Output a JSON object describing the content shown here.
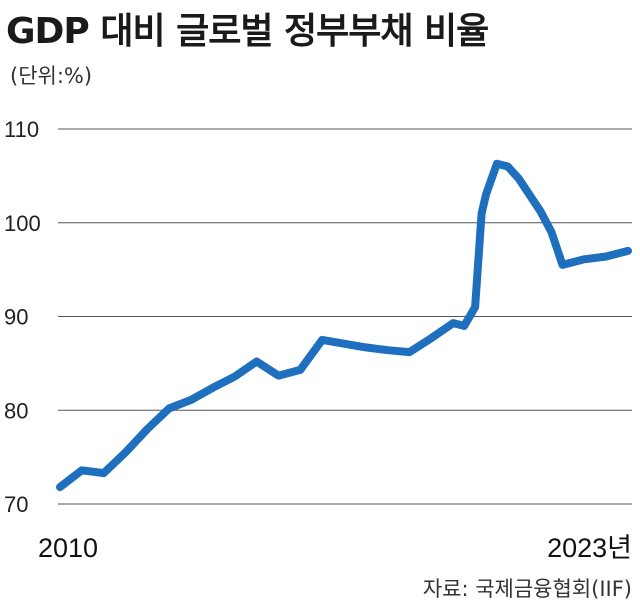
{
  "title": "GDP 대비 글로벌 정부부채 비율",
  "unit": "(단위:%)",
  "source": "자료: 국제금융협회(IIF)",
  "chart_data": {
    "type": "line",
    "title": "GDP 대비 글로벌 정부부채 비율",
    "ylabel": "",
    "xlabel": "",
    "ylim": [
      70,
      110
    ],
    "yticks": [
      70,
      80,
      90,
      100,
      110
    ],
    "x_tick_labels": [
      "2010",
      "2023년"
    ],
    "grid": true,
    "color": "#1f6fbf",
    "x": [
      2010.0,
      2010.5,
      2011.0,
      2011.5,
      2012.0,
      2012.5,
      2013.0,
      2013.5,
      2014.0,
      2014.5,
      2015.0,
      2015.5,
      2016.0,
      2016.5,
      2017.0,
      2017.5,
      2018.0,
      2018.5,
      2019.0,
      2019.25,
      2019.5,
      2019.65,
      2019.75,
      2020.0,
      2020.25,
      2020.5,
      2021.0,
      2021.25,
      2021.5,
      2022.0,
      2022.5,
      2023.0
    ],
    "values": [
      71.8,
      73.6,
      73.3,
      75.5,
      78.0,
      80.2,
      81.1,
      82.4,
      83.6,
      85.2,
      83.7,
      84.3,
      87.5,
      87.1,
      86.7,
      86.4,
      86.2,
      87.7,
      89.3,
      89.0,
      91.0,
      101.0,
      103.0,
      106.3,
      106.0,
      104.7,
      101.2,
      99.0,
      95.5,
      96.1,
      96.4,
      97.0
    ]
  }
}
